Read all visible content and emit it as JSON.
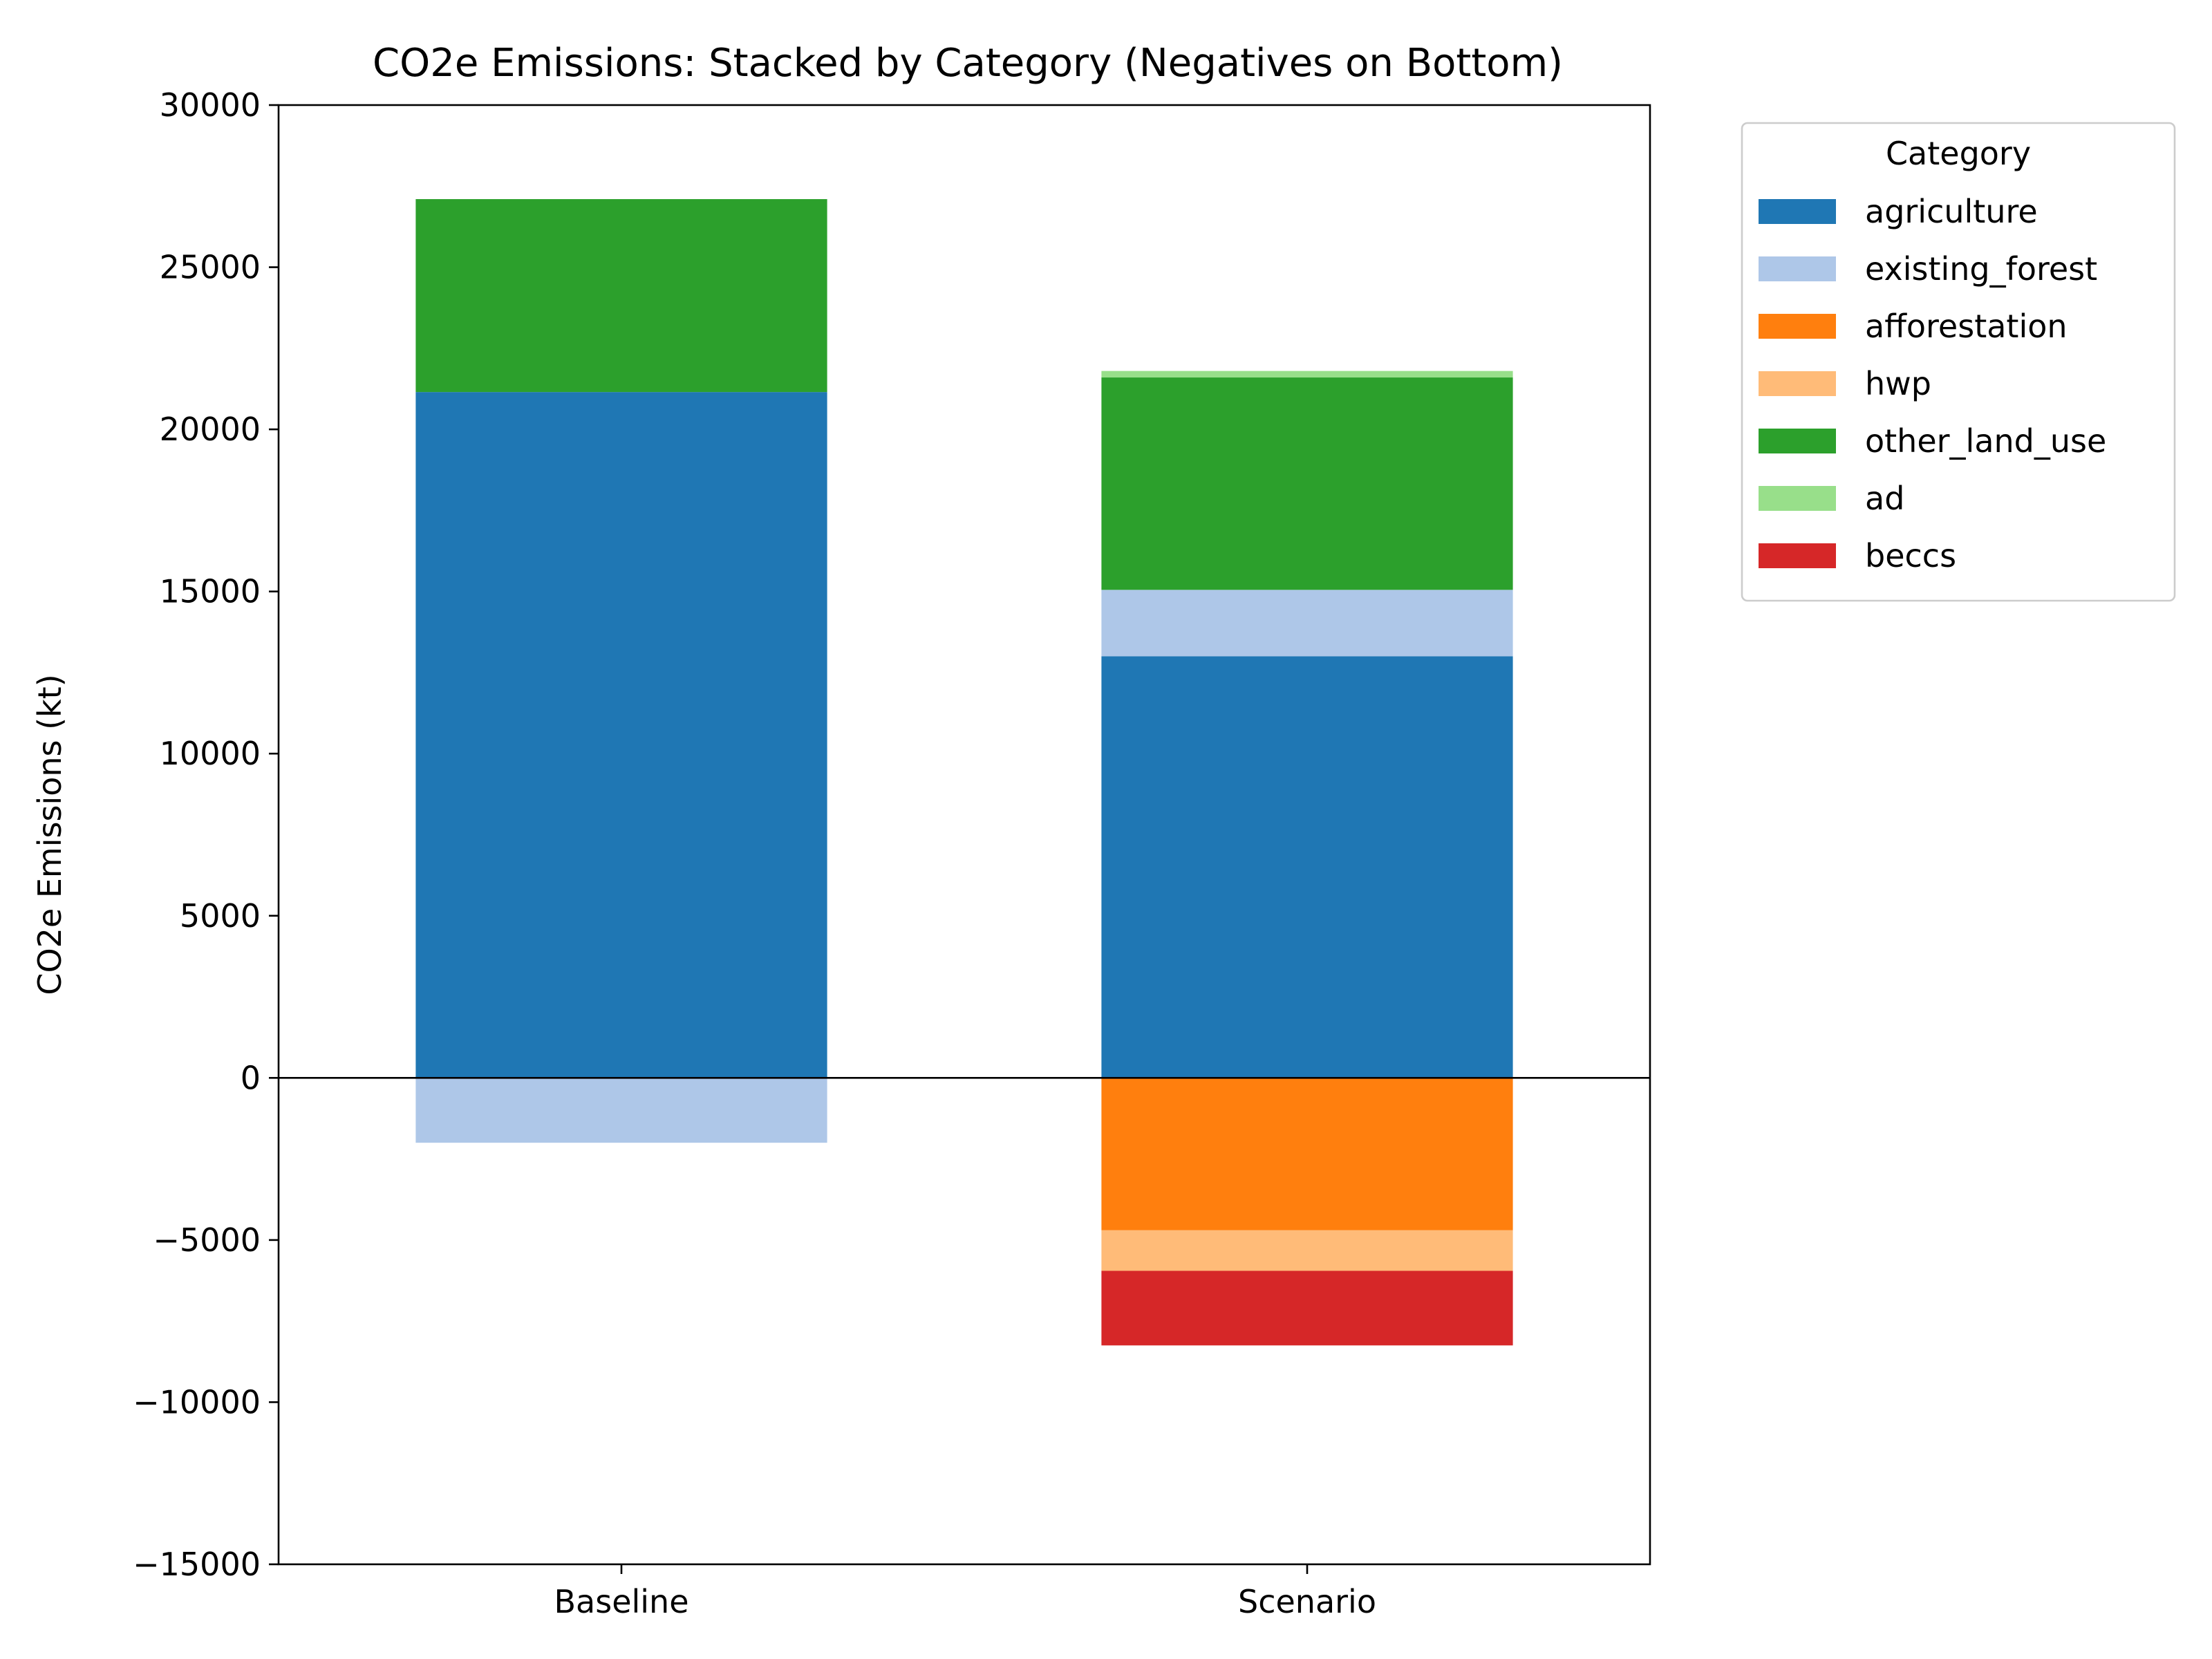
{
  "chart_data": {
    "type": "bar",
    "stacked": true,
    "title": "CO2e Emissions: Stacked by Category (Negatives on Bottom)",
    "xlabel": "",
    "ylabel": "CO2e Emissions (kt)",
    "ylim": [
      -15000,
      30000
    ],
    "yticks": [
      -15000,
      -10000,
      -5000,
      0,
      5000,
      10000,
      15000,
      20000,
      25000,
      30000
    ],
    "ytick_labels": [
      "−15000",
      "−10000",
      "−5000",
      "0",
      "5000",
      "10000",
      "15000",
      "20000",
      "25000",
      "30000"
    ],
    "categories": [
      "Baseline",
      "Scenario"
    ],
    "grid": false,
    "zero_line": true,
    "legend": {
      "title": "Category",
      "placement": "outside-top-right"
    },
    "series": [
      {
        "name": "agriculture",
        "color": "#1f77b4",
        "values": [
          21150,
          13000
        ]
      },
      {
        "name": "existing_forest",
        "color": "#aec7e8",
        "values": [
          -2000,
          2050
        ]
      },
      {
        "name": "afforestation",
        "color": "#ff7f0e",
        "values": [
          0,
          -4700
        ]
      },
      {
        "name": "hwp",
        "color": "#ffbb78",
        "values": [
          0,
          -1250
        ]
      },
      {
        "name": "other_land_use",
        "color": "#2ca02c",
        "values": [
          5950,
          6550
        ]
      },
      {
        "name": "ad",
        "color": "#98df8a",
        "values": [
          0,
          200
        ]
      },
      {
        "name": "beccs",
        "color": "#d62728",
        "values": [
          0,
          -2300
        ]
      }
    ]
  }
}
